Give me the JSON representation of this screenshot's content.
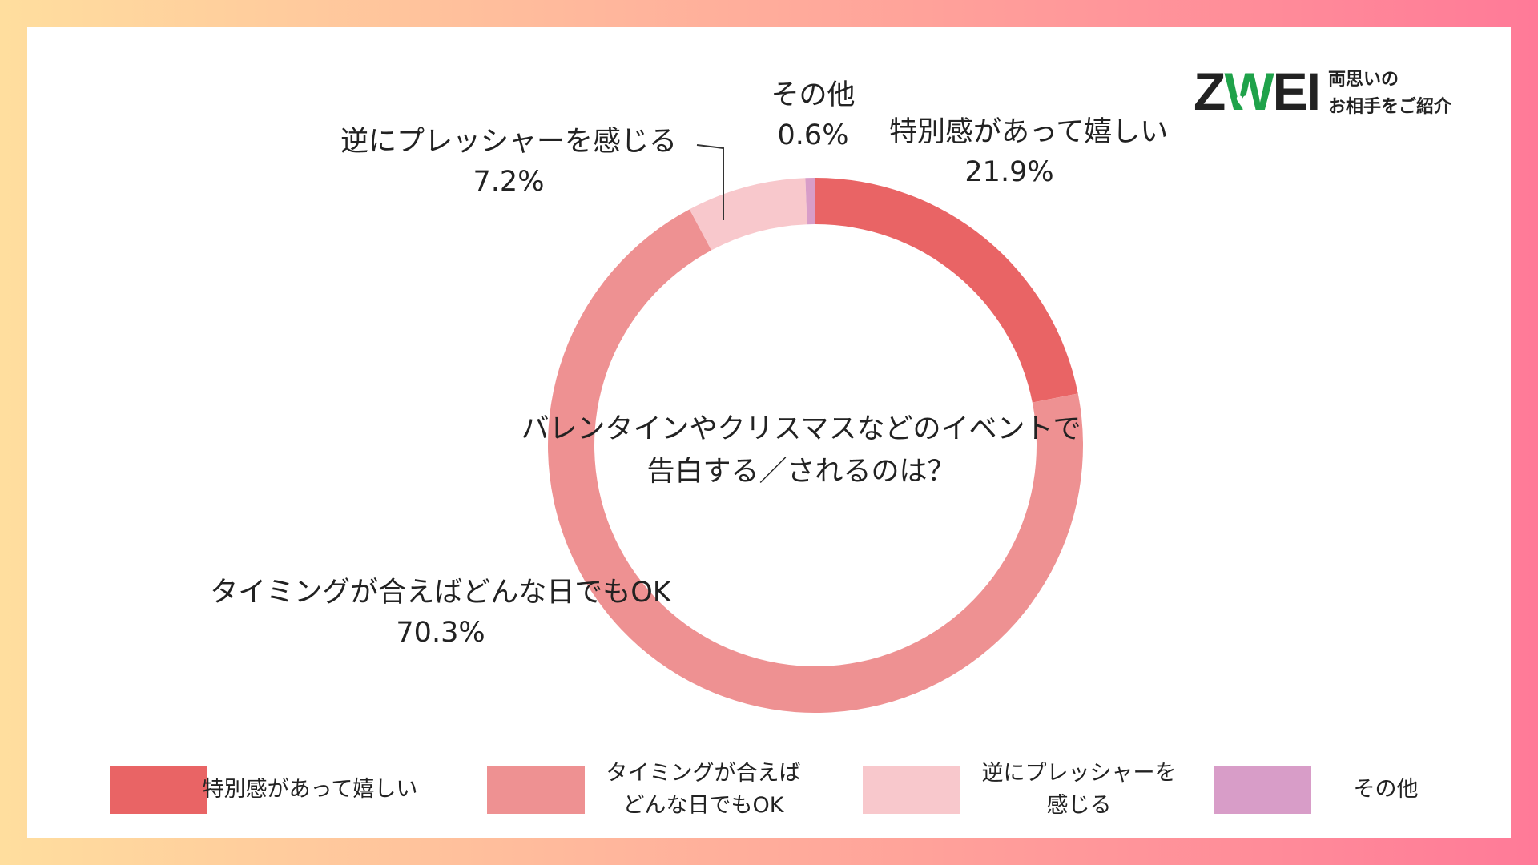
{
  "logo": {
    "wordmark": "ZWEI",
    "tagline_line1": "両思いの",
    "tagline_line2": "お相手をご紹介",
    "accent_color": "#1FA24A"
  },
  "chart_data": {
    "type": "donut",
    "center_title_line1": "バレンタインやクリスマスなどのイベントで",
    "center_title_line2": "告白する／されるのは？",
    "series": [
      {
        "name": "特別感があって嬉しい",
        "value": 21.9,
        "value_label": "21.9%",
        "color": "#E96465"
      },
      {
        "name": "タイミングが合えばどんな日でもOK",
        "value": 70.3,
        "value_label": "70.3%",
        "color": "#EE9192"
      },
      {
        "name": "逆にプレッシャーを感じる",
        "value": 7.2,
        "value_label": "7.2%",
        "color": "#F8C8CC"
      },
      {
        "name": "その他",
        "value": 0.6,
        "value_label": "0.6%",
        "color": "#D89DC8"
      }
    ],
    "legend": [
      {
        "line1": "特別感があって嬉しい",
        "line2": ""
      },
      {
        "line1": "タイミングが合えば",
        "line2": "どんな日でもOK"
      },
      {
        "line1": "逆にプレッシャーを",
        "line2": "感じる"
      },
      {
        "line1": "その他",
        "line2": ""
      }
    ],
    "legend_position": "bottom"
  },
  "background": {
    "gradient_start": "#FFDE9E",
    "gradient_end": "#FF7A98"
  }
}
